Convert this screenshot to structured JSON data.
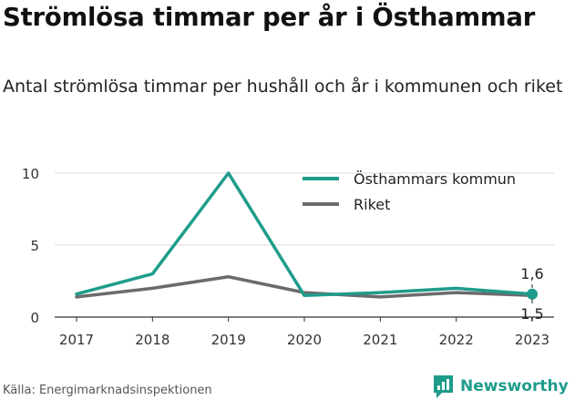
{
  "title": "Strömlösa timmar per år i Östhammar",
  "subtitle": "Antal strömlösa timmar per hushåll och år i kommunen och riket",
  "source": "Källa: Energimarknadsinspektionen",
  "brand": "Newsworthy",
  "colors": {
    "accent": "#1f9c8b",
    "riket": "#6b6b6f",
    "grid": "#d9d9d9",
    "axis": "#333333"
  },
  "chart_data": {
    "type": "line",
    "categories": [
      "2017",
      "2018",
      "2019",
      "2020",
      "2021",
      "2022",
      "2023"
    ],
    "series": [
      {
        "name": "Östhammars kommun",
        "values": [
          1.6,
          3.0,
          10.0,
          1.5,
          1.7,
          2.0,
          1.6
        ],
        "color": "#1f9c8b"
      },
      {
        "name": "Riket",
        "values": [
          1.4,
          2.0,
          2.8,
          1.7,
          1.4,
          1.7,
          1.5
        ],
        "color": "#6b6b6f"
      }
    ],
    "yticks": [
      "0",
      "5",
      "10"
    ],
    "ylim": [
      0,
      10
    ],
    "end_labels": {
      "Östhammars kommun": "1,6",
      "Riket": "1,5"
    },
    "legend_position": "top-right",
    "grid": true
  }
}
